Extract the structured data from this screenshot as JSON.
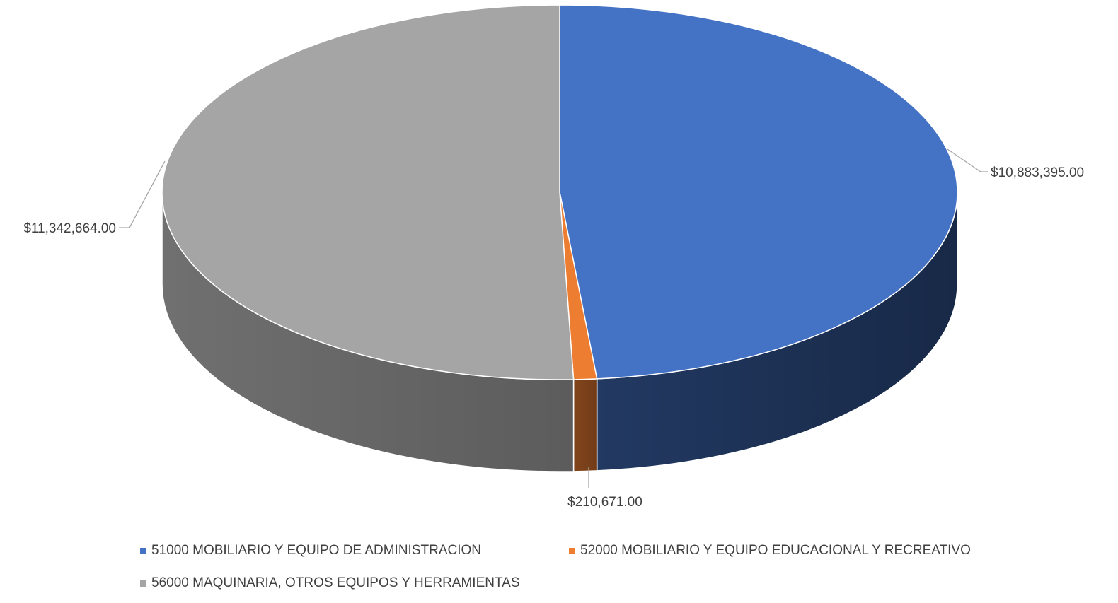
{
  "chart_data": {
    "type": "pie",
    "style": "3d",
    "title": "",
    "legend_position": "bottom",
    "series": [
      {
        "name": "51000 MOBILIARIO Y EQUIPO DE ADMINISTRACION",
        "value": 10883395.0,
        "label": "$10,883,395.00",
        "color": "#4472C4"
      },
      {
        "name": "52000 MOBILIARIO Y EQUIPO EDUCACIONAL Y RECREATIVO",
        "value": 210671.0,
        "label": "$210,671.00",
        "color": "#ED7D31"
      },
      {
        "name": "56000 MAQUINARIA, OTROS EQUIPOS Y HERRAMIENTAS",
        "value": 11342664.0,
        "label": "$11,342,664.00",
        "color": "#A5A5A5"
      }
    ]
  }
}
